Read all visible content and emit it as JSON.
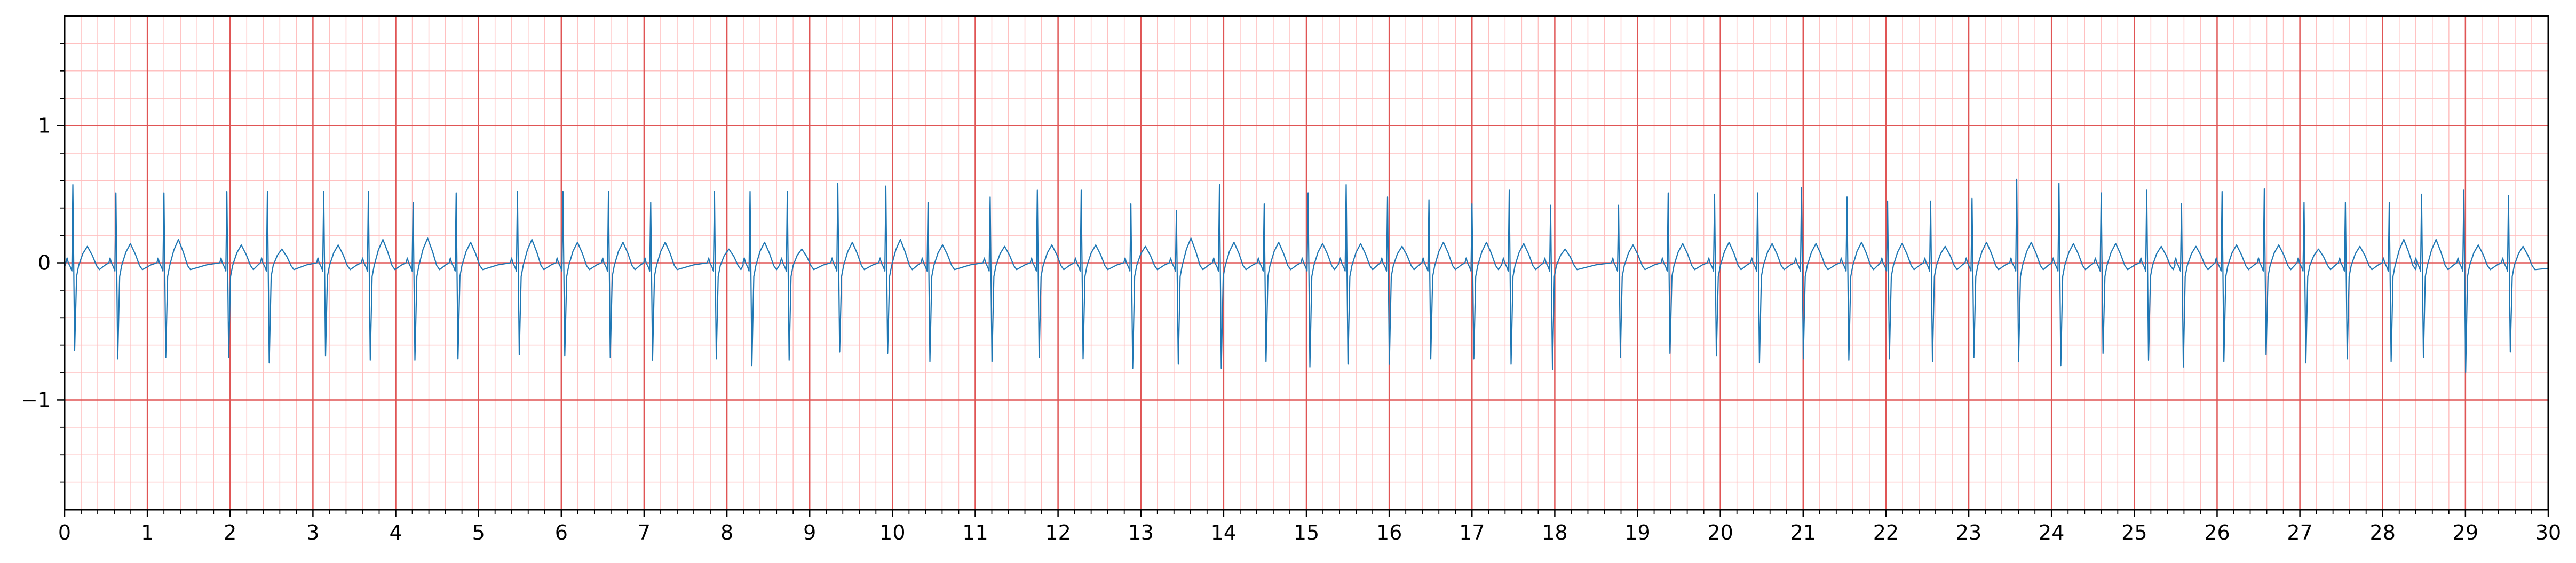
{
  "chart_data": {
    "type": "line",
    "title": "",
    "xlabel": "",
    "ylabel": "",
    "xlim": [
      0,
      30
    ],
    "ylim": [
      -1.8,
      1.8
    ],
    "x_ticks": [
      "0",
      "1",
      "2",
      "3",
      "4",
      "5",
      "6",
      "7",
      "8",
      "9",
      "10",
      "11",
      "12",
      "13",
      "14",
      "15",
      "16",
      "17",
      "18",
      "19",
      "20",
      "21",
      "22",
      "23",
      "24",
      "25",
      "26",
      "27",
      "28",
      "29",
      "30"
    ],
    "y_ticks": [
      {
        "value": 1,
        "label": "1"
      },
      {
        "value": 0,
        "label": "0"
      },
      {
        "value": -1,
        "label": "−1"
      }
    ],
    "grid": {
      "major": true,
      "major_color": "#e05555",
      "major_x_step": 1,
      "major_y_step": 1,
      "minor": true,
      "minor_color": "#ffc0c0",
      "minor_x_step": 0.2,
      "minor_y_step": 0.2
    },
    "series": [
      {
        "color": "#1f77b4",
        "beat_times": [
          0.1,
          0.62,
          1.2,
          1.96,
          2.45,
          3.13,
          3.67,
          4.21,
          4.73,
          5.47,
          6.02,
          6.57,
          7.08,
          7.85,
          8.28,
          8.73,
          9.34,
          9.92,
          10.43,
          11.18,
          11.75,
          12.28,
          12.88,
          13.43,
          13.95,
          14.49,
          15.02,
          15.48,
          15.98,
          16.48,
          17.0,
          17.45,
          17.95,
          18.77,
          19.37,
          19.93,
          20.45,
          20.98,
          21.53,
          22.02,
          22.54,
          23.04,
          23.58,
          24.09,
          24.6,
          25.15,
          25.57,
          26.06,
          26.57,
          27.05,
          27.55,
          28.08,
          28.47,
          28.98,
          29.52
        ],
        "r_peaks": [
          0.57,
          0.51,
          0.51,
          0.52,
          0.52,
          0.52,
          0.52,
          0.44,
          0.51,
          0.52,
          0.52,
          0.52,
          0.44,
          0.52,
          0.52,
          0.52,
          0.58,
          0.56,
          0.44,
          0.48,
          0.53,
          0.53,
          0.43,
          0.38,
          0.57,
          0.43,
          0.51,
          0.57,
          0.48,
          0.46,
          0.43,
          0.53,
          0.42,
          0.42,
          0.51,
          0.5,
          0.51,
          0.55,
          0.48,
          0.45,
          0.45,
          0.47,
          0.61,
          0.58,
          0.51,
          0.53,
          0.43,
          0.52,
          0.54,
          0.44,
          0.44,
          0.44,
          0.5,
          0.53,
          0.49
        ],
        "s_troughs": [
          -0.64,
          -0.7,
          -0.69,
          -0.69,
          -0.73,
          -0.68,
          -0.71,
          -0.71,
          -0.7,
          -0.67,
          -0.68,
          -0.69,
          -0.71,
          -0.7,
          -0.75,
          -0.71,
          -0.65,
          -0.66,
          -0.72,
          -0.72,
          -0.69,
          -0.7,
          -0.77,
          -0.74,
          -0.77,
          -0.72,
          -0.76,
          -0.74,
          -0.74,
          -0.7,
          -0.7,
          -0.74,
          -0.78,
          -0.69,
          -0.66,
          -0.68,
          -0.73,
          -0.7,
          -0.71,
          -0.7,
          -0.72,
          -0.69,
          -0.72,
          -0.75,
          -0.66,
          -0.71,
          -0.76,
          -0.72,
          -0.67,
          -0.73,
          -0.7,
          -0.72,
          -0.69,
          -0.8,
          -0.65
        ],
        "t_waves": [
          0.12,
          0.14,
          0.17,
          0.13,
          0.1,
          0.13,
          0.17,
          0.18,
          0.15,
          0.17,
          0.15,
          0.15,
          0.15,
          0.1,
          0.15,
          0.1,
          0.15,
          0.17,
          0.13,
          0.12,
          0.13,
          0.13,
          0.12,
          0.18,
          0.15,
          0.15,
          0.14,
          0.14,
          0.12,
          0.15,
          0.15,
          0.14,
          0.1,
          0.13,
          0.14,
          0.15,
          0.14,
          0.14,
          0.15,
          0.14,
          0.12,
          0.15,
          0.15,
          0.14,
          0.14,
          0.12,
          0.12,
          0.13,
          0.13,
          0.1,
          0.12,
          0.17,
          0.17,
          0.13,
          0.12
        ]
      }
    ]
  }
}
